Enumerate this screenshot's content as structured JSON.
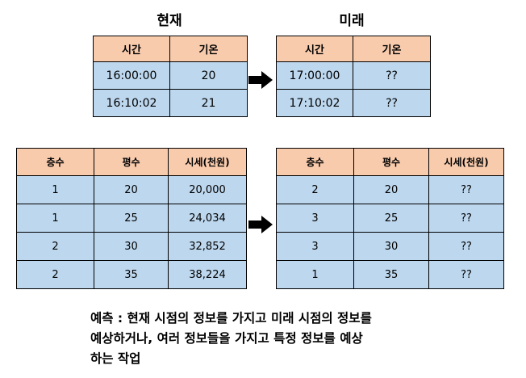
{
  "top": {
    "present_title": "현재",
    "future_title": "미래",
    "present_table": {
      "headers": [
        "시간",
        "기온"
      ],
      "rows": [
        [
          "16:00:00",
          "20"
        ],
        [
          "16:10:02",
          "21"
        ]
      ]
    },
    "future_table": {
      "headers": [
        "시간",
        "기온"
      ],
      "rows": [
        [
          "17:00:00",
          "??"
        ],
        [
          "17:10:02",
          "??"
        ]
      ]
    }
  },
  "bottom": {
    "present_table": {
      "headers": [
        "층수",
        "평수",
        "시세(천원)"
      ],
      "rows": [
        [
          "1",
          "20",
          "20,000"
        ],
        [
          "1",
          "25",
          "24,034"
        ],
        [
          "2",
          "30",
          "32,852"
        ],
        [
          "2",
          "35",
          "38,224"
        ]
      ]
    },
    "future_table": {
      "headers": [
        "층수",
        "평수",
        "시세(천원)"
      ],
      "rows": [
        [
          "2",
          "20",
          "??"
        ],
        [
          "3",
          "25",
          "??"
        ],
        [
          "3",
          "30",
          "??"
        ],
        [
          "1",
          "35",
          "??"
        ]
      ]
    }
  },
  "caption": {
    "line1": "예측 : 현재 시점의 정보를 가지고 미래 시점의 정보를",
    "line2": "예상하거나, 여러 정보들을 가지고 특정 정보를 예상",
    "line3": "하는 작업"
  },
  "colors": {
    "header_fill": "#f8cbad",
    "cell_fill": "#bdd7ee",
    "arrow": "#000000"
  },
  "icons": {
    "arrow": "right-arrow-icon"
  }
}
